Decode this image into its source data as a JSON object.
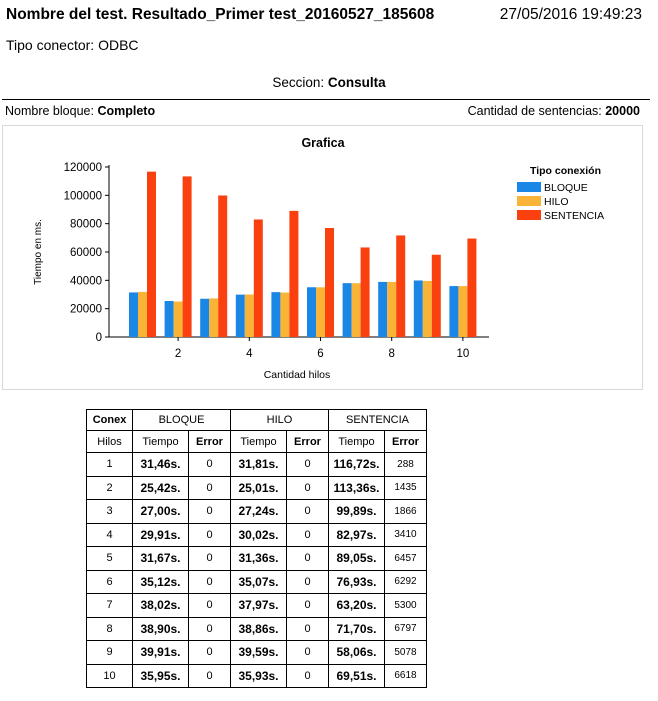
{
  "header": {
    "title": "Nombre del test. Resultado_Primer test_20160527_185608",
    "datetime": "27/05/2016 19:49:23",
    "conector": "Tipo conector: ODBC"
  },
  "section": {
    "label": "Seccion:",
    "value": "Consulta"
  },
  "bloque": {
    "label": "Nombre bloque:",
    "value": "Completo"
  },
  "cantidad": {
    "label": "Cantidad de sentencias:",
    "value": "20000"
  },
  "chart_data": {
    "type": "bar",
    "title": "Grafica",
    "xlabel": "Cantidad hilos",
    "ylabel": "Tiempo en ms.",
    "legend_title": "Tipo conexión",
    "legend_position": "right",
    "ylim": [
      0,
      120000
    ],
    "yticks": [
      "0",
      "20000",
      "40000",
      "60000",
      "80000",
      "100000",
      "120000"
    ],
    "xticks": [
      "2",
      "4",
      "6",
      "8",
      "10"
    ],
    "categories": [
      "1",
      "2",
      "3",
      "4",
      "5",
      "6",
      "7",
      "8",
      "9",
      "10"
    ],
    "series": [
      {
        "name": "BLOQUE",
        "color": "#1a87e6",
        "values": [
          31460,
          25420,
          27000,
          29910,
          31670,
          35120,
          38020,
          38900,
          39910,
          35950
        ]
      },
      {
        "name": "HILO",
        "color": "#f9b337",
        "values": [
          31810,
          25010,
          27240,
          30020,
          31360,
          35070,
          37970,
          38860,
          39590,
          35930
        ]
      },
      {
        "name": "SENTENCIA",
        "color": "#fb4010",
        "values": [
          116720,
          113360,
          99890,
          82970,
          89050,
          76930,
          63200,
          71700,
          58060,
          69510
        ]
      }
    ],
    "grid": false
  },
  "table": {
    "header1": [
      "Conex",
      "BLOQUE",
      "HILO",
      "SENTENCIA"
    ],
    "header2": [
      "Hilos",
      "Tiempo",
      "Error",
      "Tiempo",
      "Error",
      "Tiempo",
      "Error"
    ],
    "rows": [
      [
        "1",
        "31,46s.",
        "0",
        "31,81s.",
        "0",
        "116,72s.",
        "288"
      ],
      [
        "2",
        "25,42s.",
        "0",
        "25,01s.",
        "0",
        "113,36s.",
        "1435"
      ],
      [
        "3",
        "27,00s.",
        "0",
        "27,24s.",
        "0",
        "99,89s.",
        "1866"
      ],
      [
        "4",
        "29,91s.",
        "0",
        "30,02s.",
        "0",
        "82,97s.",
        "3410"
      ],
      [
        "5",
        "31,67s.",
        "0",
        "31,36s.",
        "0",
        "89,05s.",
        "6457"
      ],
      [
        "6",
        "35,12s.",
        "0",
        "35,07s.",
        "0",
        "76,93s.",
        "6292"
      ],
      [
        "7",
        "38,02s.",
        "0",
        "37,97s.",
        "0",
        "63,20s.",
        "5300"
      ],
      [
        "8",
        "38,90s.",
        "0",
        "38,86s.",
        "0",
        "71,70s.",
        "6797"
      ],
      [
        "9",
        "39,91s.",
        "0",
        "39,59s.",
        "0",
        "58,06s.",
        "5078"
      ],
      [
        "10",
        "35,95s.",
        "0",
        "35,93s.",
        "0",
        "69,51s.",
        "6618"
      ]
    ]
  }
}
